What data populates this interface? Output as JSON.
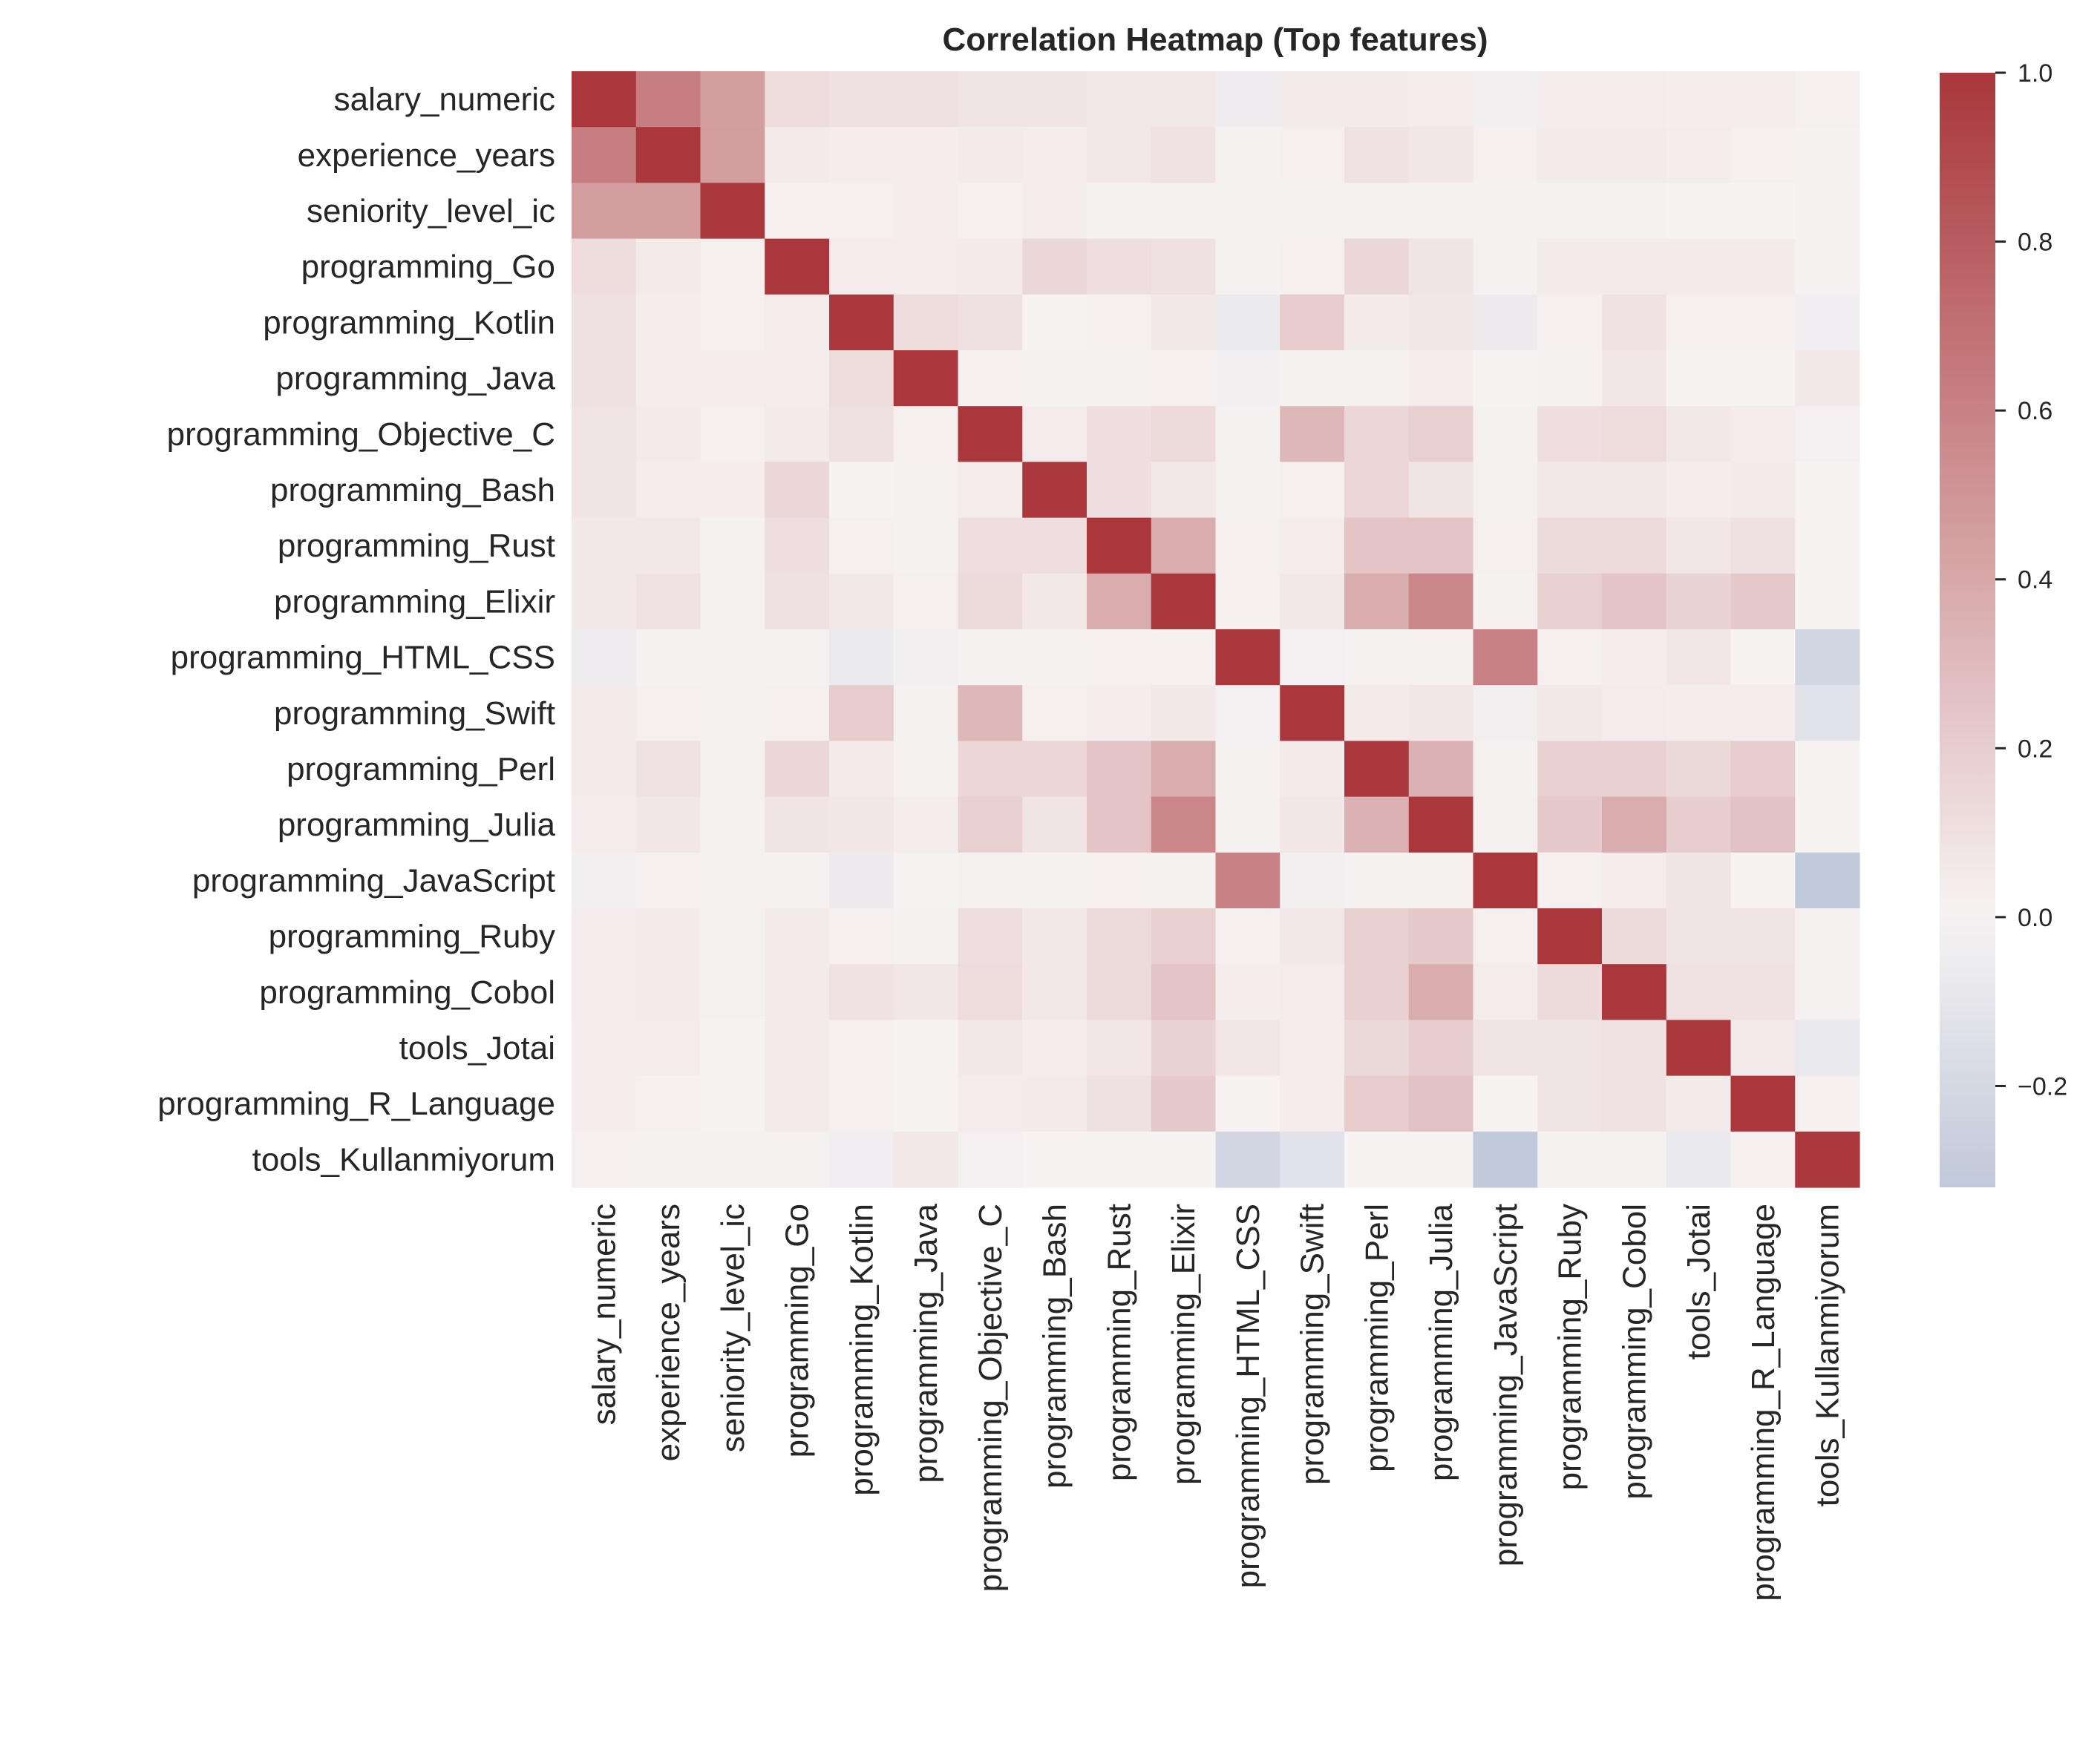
{
  "chart_data": {
    "type": "heatmap",
    "title": "Correlation Heatmap (Top features)",
    "labels": [
      "salary_numeric",
      "experience_years",
      "seniority_level_ic",
      "programming_Go",
      "programming_Kotlin",
      "programming_Java",
      "programming_Objective_C",
      "programming_Bash",
      "programming_Rust",
      "programming_Elixir",
      "programming_HTML_CSS",
      "programming_Swift",
      "programming_Perl",
      "programming_Julia",
      "programming_JavaScript",
      "programming_Ruby",
      "programming_Cobol",
      "tools_Jotai",
      "programming_R_Language",
      "tools_Kullanmiyorum"
    ],
    "matrix": [
      [
        1,
        0.62,
        0.45,
        0.12,
        0.1,
        0.1,
        0.08,
        0.08,
        0.06,
        0.06,
        -0.05,
        0.05,
        0.05,
        0.04,
        -0.03,
        0.04,
        0.04,
        0.03,
        0.03,
        0.02
      ],
      [
        0.62,
        1,
        0.46,
        0.05,
        0.03,
        0.03,
        0.05,
        0.03,
        0.06,
        0.09,
        0.01,
        0.02,
        0.09,
        0.07,
        0.02,
        0.05,
        0.05,
        0.04,
        0.02,
        0.01
      ],
      [
        0.45,
        0.46,
        1,
        0.02,
        0.02,
        0.03,
        0.02,
        0.03,
        0.01,
        0.01,
        0.01,
        0.01,
        0.01,
        0.01,
        0.01,
        0.01,
        0.01,
        0.0,
        0.0,
        0.01
      ],
      [
        0.12,
        0.05,
        0.02,
        1,
        0.04,
        0.04,
        0.05,
        0.15,
        0.11,
        0.1,
        0.01,
        0.02,
        0.15,
        0.08,
        0.01,
        0.05,
        0.05,
        0.05,
        0.05,
        0.01
      ],
      [
        0.1,
        0.03,
        0.02,
        0.04,
        1,
        0.12,
        0.1,
        0.0,
        0.02,
        0.06,
        -0.07,
        0.21,
        0.05,
        0.07,
        -0.06,
        0.02,
        0.09,
        0.02,
        0.02,
        -0.04
      ],
      [
        0.1,
        0.03,
        0.03,
        0.04,
        0.12,
        1,
        0.02,
        0.01,
        0.01,
        0.02,
        -0.03,
        0.01,
        0.01,
        0.03,
        -0.01,
        0.01,
        0.07,
        0.0,
        0.0,
        0.06
      ],
      [
        0.08,
        0.05,
        0.02,
        0.05,
        0.1,
        0.02,
        1,
        0.04,
        0.11,
        0.13,
        0.01,
        0.32,
        0.15,
        0.19,
        0.01,
        0.11,
        0.12,
        0.06,
        0.04,
        -0.02
      ],
      [
        0.08,
        0.03,
        0.03,
        0.15,
        0.0,
        0.01,
        0.04,
        1,
        0.11,
        0.06,
        0.01,
        0.02,
        0.16,
        0.08,
        0.01,
        0.06,
        0.06,
        0.03,
        0.05,
        0.0
      ],
      [
        0.06,
        0.06,
        0.01,
        0.11,
        0.02,
        0.01,
        0.11,
        0.11,
        1,
        0.38,
        0.02,
        0.03,
        0.25,
        0.25,
        0.02,
        0.13,
        0.13,
        0.07,
        0.1,
        0.0
      ],
      [
        0.06,
        0.09,
        0.01,
        0.1,
        0.06,
        0.02,
        0.13,
        0.06,
        0.38,
        1,
        0.02,
        0.06,
        0.38,
        0.58,
        0.01,
        0.19,
        0.25,
        0.17,
        0.22,
        0.0
      ],
      [
        -0.05,
        0.01,
        0.01,
        0.01,
        -0.07,
        -0.03,
        0.01,
        0.01,
        0.02,
        0.02,
        1,
        -0.02,
        0.01,
        0.01,
        0.6,
        0.02,
        0.03,
        0.07,
        0.0,
        -0.22
      ],
      [
        0.05,
        0.02,
        0.01,
        0.02,
        0.21,
        0.01,
        0.32,
        0.02,
        0.03,
        0.06,
        -0.02,
        1,
        0.05,
        0.07,
        -0.03,
        0.06,
        0.04,
        0.03,
        0.03,
        -0.12
      ],
      [
        0.05,
        0.09,
        0.01,
        0.15,
        0.05,
        0.01,
        0.15,
        0.16,
        0.25,
        0.38,
        0.01,
        0.05,
        1,
        0.35,
        0.01,
        0.18,
        0.18,
        0.14,
        0.21,
        0.0
      ],
      [
        0.04,
        0.07,
        0.01,
        0.08,
        0.07,
        0.03,
        0.19,
        0.08,
        0.25,
        0.58,
        0.01,
        0.07,
        0.35,
        1,
        0.01,
        0.22,
        0.38,
        0.2,
        0.26,
        0.0
      ],
      [
        -0.03,
        0.02,
        0.01,
        0.01,
        -0.06,
        -0.01,
        0.01,
        0.01,
        0.02,
        0.01,
        0.6,
        -0.03,
        0.01,
        0.01,
        1,
        0.02,
        0.04,
        0.08,
        0.0,
        -0.31
      ],
      [
        0.04,
        0.05,
        0.01,
        0.05,
        0.02,
        0.01,
        0.11,
        0.06,
        0.13,
        0.19,
        0.02,
        0.06,
        0.18,
        0.22,
        0.02,
        1,
        0.13,
        0.08,
        0.08,
        0.01
      ],
      [
        0.04,
        0.05,
        0.01,
        0.05,
        0.09,
        0.07,
        0.12,
        0.06,
        0.13,
        0.25,
        0.03,
        0.04,
        0.18,
        0.38,
        0.04,
        0.13,
        1,
        0.09,
        0.09,
        0.01
      ],
      [
        0.03,
        0.04,
        0.0,
        0.05,
        0.02,
        0.0,
        0.06,
        0.03,
        0.07,
        0.17,
        0.07,
        0.03,
        0.14,
        0.2,
        0.08,
        0.08,
        0.09,
        1,
        0.05,
        -0.08
      ],
      [
        0.03,
        0.02,
        0.0,
        0.05,
        0.02,
        0.0,
        0.04,
        0.05,
        0.1,
        0.22,
        0.0,
        0.03,
        0.21,
        0.26,
        0.0,
        0.08,
        0.09,
        0.05,
        1,
        0.02
      ],
      [
        0.02,
        0.01,
        0.01,
        0.01,
        -0.04,
        0.06,
        -0.02,
        0.0,
        0.0,
        0.0,
        -0.22,
        -0.12,
        0.0,
        0.0,
        -0.31,
        0.01,
        0.01,
        -0.08,
        0.02,
        1
      ]
    ],
    "colorbar": {
      "vmin": -0.32,
      "vmax": 1.0,
      "center": 0,
      "ticks": [
        -0.2,
        0.0,
        0.2,
        0.4,
        0.6,
        0.8,
        1.0
      ],
      "tick_labels": [
        "−0.2",
        "0.0",
        "0.2",
        "0.4",
        "0.6",
        "0.8",
        "1.0"
      ]
    },
    "colormap": {
      "negative_end": "#4a6fa5",
      "center": "#f7f3f3",
      "positive_end": "#a9373b"
    },
    "grid": false
  }
}
